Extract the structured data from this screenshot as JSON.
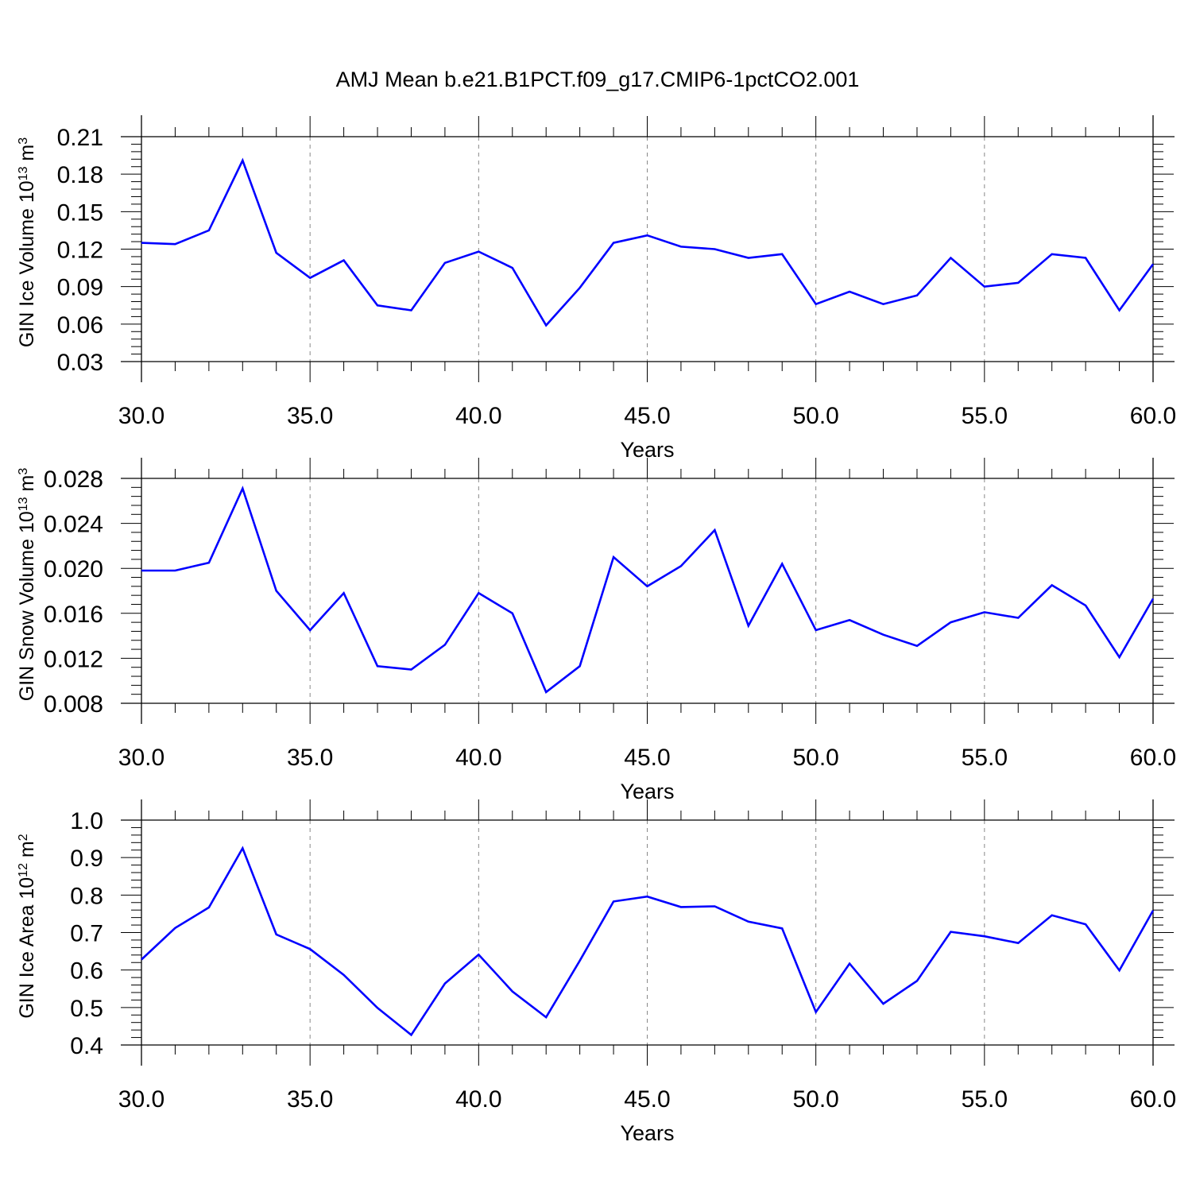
{
  "title": "AMJ Mean b.e21.B1PCT.f09_g17.CMIP6-1pctCO2.001",
  "colors": {
    "series": "#0000ff",
    "axis": "#000000",
    "grid": "#888888"
  },
  "chart_data": [
    {
      "type": "line",
      "ylabel": "GIN Ice Volume 10",
      "ylabel_exp": "13",
      "ylabel_unit": " m",
      "ylabel_unit_exp": "3",
      "xlabel": "Years",
      "xlim": [
        30,
        60
      ],
      "ylim": [
        0.03,
        0.21
      ],
      "xticks": [
        "30.0",
        "35.0",
        "40.0",
        "45.0",
        "50.0",
        "55.0",
        "60.0"
      ],
      "yticks": [
        "0.03",
        "0.06",
        "0.09",
        "0.12",
        "0.15",
        "0.18",
        "0.21"
      ],
      "grid": "vertical dashed at major x ticks",
      "x": [
        30,
        31,
        32,
        33,
        34,
        35,
        36,
        37,
        38,
        39,
        40,
        41,
        42,
        43,
        44,
        45,
        46,
        47,
        48,
        49,
        50,
        51,
        52,
        53,
        54,
        55,
        56,
        57,
        58,
        59,
        60
      ],
      "values": [
        0.125,
        0.124,
        0.135,
        0.191,
        0.117,
        0.097,
        0.111,
        0.075,
        0.071,
        0.109,
        0.118,
        0.105,
        0.059,
        0.089,
        0.125,
        0.131,
        0.122,
        0.12,
        0.113,
        0.116,
        0.076,
        0.086,
        0.076,
        0.083,
        0.113,
        0.09,
        0.093,
        0.116,
        0.113,
        0.071,
        0.108
      ]
    },
    {
      "type": "line",
      "ylabel": "GIN Snow Volume 10",
      "ylabel_exp": "13",
      "ylabel_unit": " m",
      "ylabel_unit_exp": "3",
      "xlabel": "Years",
      "xlim": [
        30,
        60
      ],
      "ylim": [
        0.008,
        0.028
      ],
      "xticks": [
        "30.0",
        "35.0",
        "40.0",
        "45.0",
        "50.0",
        "55.0",
        "60.0"
      ],
      "yticks": [
        "0.008",
        "0.012",
        "0.016",
        "0.020",
        "0.024",
        "0.028"
      ],
      "grid": "vertical dashed at major x ticks",
      "x": [
        30,
        31,
        32,
        33,
        34,
        35,
        36,
        37,
        38,
        39,
        40,
        41,
        42,
        43,
        44,
        45,
        46,
        47,
        48,
        49,
        50,
        51,
        52,
        53,
        54,
        55,
        56,
        57,
        58,
        59,
        60
      ],
      "values": [
        0.0198,
        0.0198,
        0.0205,
        0.0271,
        0.018,
        0.0145,
        0.0178,
        0.0113,
        0.011,
        0.0132,
        0.0178,
        0.016,
        0.009,
        0.0113,
        0.021,
        0.0184,
        0.0202,
        0.0234,
        0.0149,
        0.0204,
        0.0145,
        0.0154,
        0.0141,
        0.0131,
        0.0152,
        0.0161,
        0.0156,
        0.0185,
        0.0167,
        0.0121,
        0.0173
      ]
    },
    {
      "type": "line",
      "ylabel": "GIN Ice Area 10",
      "ylabel_exp": "12",
      "ylabel_unit": " m",
      "ylabel_unit_exp": "2",
      "xlabel": "Years",
      "xlim": [
        30,
        60
      ],
      "ylim": [
        0.4,
        1.0
      ],
      "xticks": [
        "30.0",
        "35.0",
        "40.0",
        "45.0",
        "50.0",
        "55.0",
        "60.0"
      ],
      "yticks": [
        "0.4",
        "0.5",
        "0.6",
        "0.7",
        "0.8",
        "0.9",
        "1.0"
      ],
      "grid": "vertical dashed at major x ticks",
      "x": [
        30,
        31,
        32,
        33,
        34,
        35,
        36,
        37,
        38,
        39,
        40,
        41,
        42,
        43,
        44,
        45,
        46,
        47,
        48,
        49,
        50,
        51,
        52,
        53,
        54,
        55,
        56,
        57,
        58,
        59,
        60
      ],
      "values": [
        0.628,
        0.712,
        0.767,
        0.925,
        0.695,
        0.656,
        0.587,
        0.499,
        0.427,
        0.564,
        0.641,
        0.543,
        0.474,
        0.625,
        0.783,
        0.796,
        0.768,
        0.77,
        0.729,
        0.711,
        0.488,
        0.617,
        0.51,
        0.571,
        0.702,
        0.69,
        0.672,
        0.746,
        0.722,
        0.599,
        0.759
      ]
    }
  ]
}
